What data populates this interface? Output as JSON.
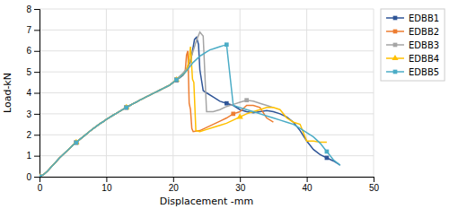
{
  "chart_data": {
    "type": "line",
    "xlabel": "Displacement -mm",
    "ylabel": "Load-kN",
    "xlim": [
      0,
      50
    ],
    "ylim": [
      0,
      8
    ],
    "xticks": [
      0,
      10,
      20,
      30,
      40,
      50
    ],
    "yticks": [
      0,
      1,
      2,
      3,
      4,
      5,
      6,
      7,
      8
    ],
    "grid": true,
    "legend": "right",
    "series": [
      {
        "name": "EDBB1",
        "color": "#2F5597",
        "marker": "square",
        "x": [
          0,
          0.3,
          0.6,
          0.9,
          1.2,
          1.5,
          1.8,
          2.1,
          2.4,
          2.7,
          3.0,
          3.5,
          4.0,
          4.5,
          5.0,
          5.5,
          6.0,
          6.5,
          7.0,
          7.5,
          8.0,
          8.5,
          9.0,
          9.5,
          10.0,
          10.5,
          11.0,
          11.5,
          12.0,
          12.5,
          13.0,
          13.5,
          14.0,
          14.5,
          15.0,
          15.5,
          16.0,
          16.5,
          17.0,
          17.5,
          18.0,
          18.5,
          19.0,
          19.5,
          20.0,
          20.5,
          21.0,
          21.5,
          22.0,
          22.3,
          22.6,
          22.9,
          23.2,
          23.5,
          23.8,
          24.0,
          24.5,
          25.0,
          26.0,
          27.0,
          28.0,
          29.0,
          30.0,
          31.0,
          32.0,
          33.0,
          34.0,
          35.0,
          36.0,
          37.0,
          38.0,
          39.0,
          40.0,
          41.0,
          42.0,
          43.0,
          44.0,
          45.0
        ],
        "values": [
          0,
          0.05,
          0.1,
          0.18,
          0.27,
          0.37,
          0.48,
          0.58,
          0.68,
          0.79,
          0.9,
          1.05,
          1.2,
          1.35,
          1.5,
          1.63,
          1.77,
          1.9,
          2.03,
          2.16,
          2.28,
          2.4,
          2.52,
          2.62,
          2.73,
          2.83,
          2.93,
          3.02,
          3.12,
          3.21,
          3.3,
          3.39,
          3.48,
          3.56,
          3.65,
          3.73,
          3.81,
          3.89,
          3.97,
          4.05,
          4.13,
          4.21,
          4.29,
          4.37,
          4.5,
          4.6,
          4.72,
          4.85,
          5.1,
          5.3,
          5.5,
          6.0,
          6.55,
          6.65,
          6.3,
          5.1,
          4.1,
          4.0,
          3.8,
          3.6,
          3.5,
          3.4,
          3.2,
          3.1,
          3.05,
          3.1,
          3.15,
          3.1,
          3.0,
          2.85,
          2.6,
          2.2,
          1.7,
          1.3,
          1.05,
          0.9,
          0.75,
          0.55
        ]
      },
      {
        "name": "EDBB2",
        "color": "#ED7D31",
        "marker": "square",
        "x": [
          0,
          0.3,
          0.6,
          0.9,
          1.2,
          1.5,
          1.8,
          2.1,
          2.4,
          2.7,
          3.0,
          3.5,
          4.0,
          4.5,
          5.0,
          5.5,
          6.0,
          6.5,
          7.0,
          7.5,
          8.0,
          8.5,
          9.0,
          9.5,
          10.0,
          10.5,
          11.0,
          11.5,
          12.0,
          12.5,
          13.0,
          13.5,
          14.0,
          14.5,
          15.0,
          15.5,
          16.0,
          16.5,
          17.0,
          17.5,
          18.0,
          18.5,
          19.0,
          19.5,
          20.0,
          20.5,
          21.0,
          21.5,
          21.8,
          22.0,
          22.2,
          22.4,
          22.6,
          22.8,
          23.0,
          24.0,
          25.0,
          26.0,
          27.0,
          28.0,
          29.0,
          30.0,
          31.0,
          32.0,
          33.0,
          34.0,
          35.0
        ],
        "values": [
          0,
          0.05,
          0.1,
          0.18,
          0.27,
          0.37,
          0.48,
          0.58,
          0.68,
          0.79,
          0.9,
          1.05,
          1.2,
          1.35,
          1.5,
          1.63,
          1.77,
          1.9,
          2.03,
          2.16,
          2.28,
          2.4,
          2.52,
          2.62,
          2.73,
          2.83,
          2.93,
          3.02,
          3.12,
          3.21,
          3.3,
          3.39,
          3.48,
          3.56,
          3.65,
          3.73,
          3.81,
          3.89,
          3.97,
          4.05,
          4.13,
          4.21,
          4.29,
          4.37,
          4.5,
          4.62,
          4.75,
          4.88,
          5.0,
          5.8,
          6.0,
          3.5,
          3.2,
          2.3,
          2.15,
          2.2,
          2.35,
          2.5,
          2.65,
          2.8,
          3.0,
          3.1,
          3.4,
          3.4,
          3.3,
          2.8,
          2.6
        ]
      },
      {
        "name": "EDBB3",
        "color": "#A5A5A5",
        "marker": "square",
        "x": [
          0,
          0.3,
          0.6,
          0.9,
          1.2,
          1.5,
          1.8,
          2.1,
          2.4,
          2.7,
          3.0,
          3.5,
          4.0,
          4.5,
          5.0,
          5.5,
          6.0,
          6.5,
          7.0,
          7.5,
          8.0,
          8.5,
          9.0,
          9.5,
          10.0,
          10.5,
          11.0,
          11.5,
          12.0,
          12.5,
          13.0,
          13.5,
          14.0,
          14.5,
          15.0,
          15.5,
          16.0,
          16.5,
          17.0,
          17.5,
          18.0,
          18.5,
          19.0,
          19.5,
          20.0,
          20.5,
          21.0,
          21.5,
          22.0,
          22.5,
          23.0,
          23.5,
          24.0,
          24.5,
          25.0,
          26.0,
          27.0,
          28.0,
          29.0,
          30.0,
          31.0,
          32.0,
          33.0,
          34.0,
          35.0
        ],
        "values": [
          0,
          0.05,
          0.1,
          0.18,
          0.27,
          0.37,
          0.48,
          0.58,
          0.68,
          0.79,
          0.9,
          1.05,
          1.2,
          1.35,
          1.5,
          1.63,
          1.77,
          1.9,
          2.03,
          2.16,
          2.28,
          2.4,
          2.52,
          2.62,
          2.73,
          2.83,
          2.93,
          3.02,
          3.12,
          3.21,
          3.3,
          3.39,
          3.48,
          3.56,
          3.65,
          3.73,
          3.81,
          3.89,
          3.97,
          4.05,
          4.13,
          4.21,
          4.29,
          4.37,
          4.5,
          4.65,
          4.8,
          4.95,
          5.15,
          5.5,
          6.0,
          6.5,
          6.9,
          6.7,
          3.1,
          3.1,
          3.2,
          3.35,
          3.45,
          3.55,
          3.65,
          3.6,
          3.5,
          3.4,
          3.3
        ]
      },
      {
        "name": "EDBB4",
        "color": "#FFC000",
        "marker": "triangle",
        "x": [
          0,
          0.3,
          0.6,
          0.9,
          1.2,
          1.5,
          1.8,
          2.1,
          2.4,
          2.7,
          3.0,
          3.5,
          4.0,
          4.5,
          5.0,
          5.5,
          6.0,
          6.5,
          7.0,
          7.5,
          8.0,
          8.5,
          9.0,
          9.5,
          10.0,
          10.5,
          11.0,
          11.5,
          12.0,
          12.5,
          13.0,
          13.5,
          14.0,
          14.5,
          15.0,
          15.5,
          16.0,
          16.5,
          17.0,
          17.5,
          18.0,
          18.5,
          19.0,
          19.5,
          20.0,
          20.5,
          21.0,
          21.5,
          22.0,
          22.3,
          22.6,
          22.9,
          23.1,
          23.4,
          24.0,
          25.0,
          26.0,
          27.0,
          28.0,
          29.0,
          30.0,
          31.0,
          32.0,
          33.0,
          34.0,
          35.0,
          36.0,
          37.0,
          38.0,
          39.0,
          40.0,
          41.0,
          42.0,
          43.0
        ],
        "values": [
          0,
          0.05,
          0.1,
          0.18,
          0.27,
          0.37,
          0.48,
          0.58,
          0.68,
          0.79,
          0.9,
          1.05,
          1.2,
          1.35,
          1.5,
          1.63,
          1.77,
          1.9,
          2.03,
          2.16,
          2.28,
          2.4,
          2.52,
          2.62,
          2.73,
          2.83,
          2.93,
          3.02,
          3.12,
          3.21,
          3.3,
          3.39,
          3.48,
          3.56,
          3.65,
          3.73,
          3.81,
          3.89,
          3.97,
          4.05,
          4.13,
          4.21,
          4.29,
          4.37,
          4.5,
          4.62,
          4.75,
          4.88,
          5.05,
          5.4,
          6.2,
          4.65,
          4.5,
          2.2,
          2.15,
          2.25,
          2.35,
          2.45,
          2.55,
          2.7,
          2.85,
          3.0,
          3.1,
          3.2,
          3.3,
          3.3,
          3.2,
          2.8,
          2.6,
          2.5,
          1.7,
          1.7,
          1.65,
          1.65
        ]
      },
      {
        "name": "EDBB5",
        "color": "#4BACC6",
        "marker": "square",
        "x": [
          0,
          0.3,
          0.6,
          0.9,
          1.2,
          1.5,
          1.8,
          2.1,
          2.4,
          2.7,
          3.0,
          3.5,
          4.0,
          4.5,
          5.0,
          5.5,
          6.0,
          6.5,
          7.0,
          7.5,
          8.0,
          8.5,
          9.0,
          9.5,
          10.0,
          10.5,
          11.0,
          11.5,
          12.0,
          12.5,
          13.0,
          13.5,
          14.0,
          14.5,
          15.0,
          15.5,
          16.0,
          16.5,
          17.0,
          17.5,
          18.0,
          18.5,
          19.0,
          19.5,
          20.0,
          20.5,
          21.0,
          21.5,
          22.0,
          22.5,
          23.0,
          23.5,
          24.0,
          24.5,
          25.0,
          25.5,
          26.0,
          26.5,
          27.0,
          27.5,
          28.0,
          29.0,
          30.0,
          31.0,
          32.0,
          33.0,
          34.0,
          35.0,
          36.0,
          37.0,
          38.0,
          39.0,
          40.0,
          41.0,
          42.0,
          43.0,
          44.0,
          45.0
        ],
        "values": [
          0,
          0.05,
          0.1,
          0.18,
          0.27,
          0.37,
          0.48,
          0.58,
          0.68,
          0.79,
          0.9,
          1.05,
          1.2,
          1.35,
          1.5,
          1.63,
          1.77,
          1.9,
          2.03,
          2.16,
          2.28,
          2.4,
          2.52,
          2.62,
          2.73,
          2.83,
          2.93,
          3.02,
          3.12,
          3.21,
          3.3,
          3.39,
          3.48,
          3.56,
          3.65,
          3.73,
          3.81,
          3.89,
          3.97,
          4.05,
          4.13,
          4.21,
          4.29,
          4.37,
          4.5,
          4.62,
          4.75,
          4.88,
          5.05,
          5.25,
          5.45,
          5.6,
          5.75,
          5.85,
          5.95,
          6.05,
          6.1,
          6.15,
          6.2,
          6.25,
          6.3,
          3.4,
          3.3,
          3.2,
          3.1,
          3.0,
          2.9,
          2.8,
          2.7,
          2.6,
          2.5,
          2.3,
          2.1,
          1.9,
          1.6,
          1.2,
          0.8,
          0.55
        ]
      }
    ]
  }
}
